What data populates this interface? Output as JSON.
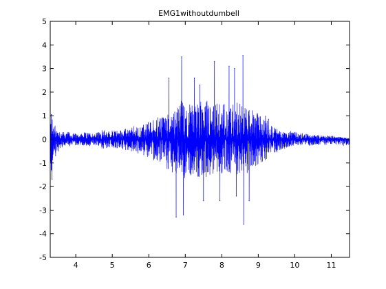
{
  "chart_data": {
    "type": "line",
    "title": "EMG1withoutdumbell",
    "xlabel": "",
    "ylabel": "",
    "xlim": [
      3.3,
      11.5
    ],
    "ylim": [
      -5,
      5
    ],
    "xticks": [
      4,
      5,
      6,
      7,
      8,
      9,
      10,
      11
    ],
    "yticks": [
      -5,
      -4,
      -3,
      -2,
      -1,
      0,
      1,
      2,
      3,
      4,
      5
    ],
    "grid": false,
    "legend": "none",
    "series_color": "#0000ff",
    "envelope": {
      "x": [
        3.3,
        3.45,
        3.6,
        4.0,
        4.6,
        4.8,
        5.0,
        5.4,
        5.8,
        6.0,
        6.3,
        6.6,
        6.9,
        7.2,
        7.5,
        7.8,
        8.1,
        8.4,
        8.6,
        8.9,
        9.2,
        9.4,
        9.7,
        10.0,
        10.5,
        11.0,
        11.5
      ],
      "upper": [
        1.05,
        0.6,
        0.35,
        0.25,
        0.3,
        0.4,
        0.35,
        0.45,
        0.6,
        0.75,
        0.95,
        1.3,
        1.6,
        1.5,
        1.6,
        1.6,
        1.5,
        1.6,
        1.4,
        1.2,
        0.95,
        0.55,
        0.35,
        0.3,
        0.2,
        0.15,
        0.05
      ],
      "lower": [
        -1.7,
        -0.7,
        -0.35,
        -0.25,
        -0.3,
        -0.4,
        -0.35,
        -0.45,
        -0.6,
        -0.75,
        -1.0,
        -1.3,
        -1.6,
        -1.5,
        -1.6,
        -1.6,
        -1.5,
        -1.6,
        -1.4,
        -1.2,
        -0.95,
        -0.6,
        -0.4,
        -0.3,
        -0.25,
        -0.2,
        -0.3
      ]
    },
    "peaks": [
      {
        "x": 3.33,
        "y": 1.05
      },
      {
        "x": 3.35,
        "y": -1.7
      },
      {
        "x": 6.55,
        "y": 2.6
      },
      {
        "x": 6.75,
        "y": -3.3
      },
      {
        "x": 6.9,
        "y": 3.5
      },
      {
        "x": 6.95,
        "y": -3.2
      },
      {
        "x": 7.25,
        "y": 2.6
      },
      {
        "x": 7.4,
        "y": 2.3
      },
      {
        "x": 7.5,
        "y": -2.6
      },
      {
        "x": 7.8,
        "y": 3.3
      },
      {
        "x": 7.95,
        "y": -2.6
      },
      {
        "x": 8.2,
        "y": 3.1
      },
      {
        "x": 8.35,
        "y": 3.0
      },
      {
        "x": 8.4,
        "y": -2.4
      },
      {
        "x": 8.58,
        "y": 3.55
      },
      {
        "x": 8.6,
        "y": -3.6
      },
      {
        "x": 8.75,
        "y": -2.6
      },
      {
        "x": 9.28,
        "y": 0.85
      }
    ]
  }
}
